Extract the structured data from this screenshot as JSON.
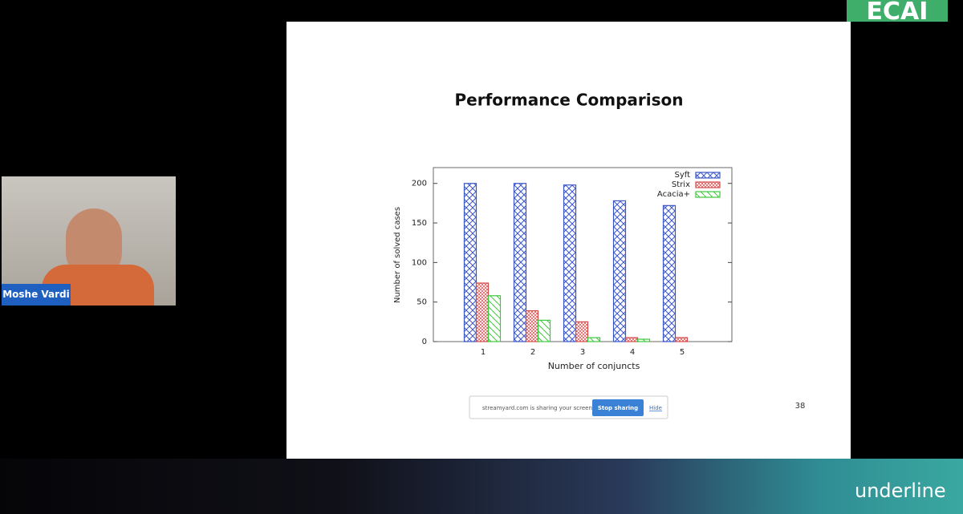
{
  "chart_data": {
    "type": "bar",
    "title": "Performance Comparison",
    "x_label": "Number of conjuncts",
    "y_label": "Number of solved cases",
    "categories": [
      "1",
      "2",
      "3",
      "4",
      "5"
    ],
    "series": [
      {
        "name": "Syft",
        "color": "#3a55c8",
        "values": [
          200,
          200,
          198,
          178,
          172
        ]
      },
      {
        "name": "Strix",
        "color": "#d44a4a",
        "values": [
          74,
          39,
          25,
          5,
          5
        ]
      },
      {
        "name": "Acacia+",
        "color": "#3cc83c",
        "values": [
          58,
          27,
          5,
          3,
          0
        ]
      }
    ],
    "ylim": [
      0,
      220
    ],
    "yticks": [
      0,
      50,
      100,
      150,
      200
    ],
    "grid": false,
    "legend": "top-right"
  },
  "slide": {
    "page_number": "38"
  },
  "share_bar": {
    "message": "streamyard.com is sharing your screen.",
    "stop_button": "Stop sharing",
    "hide_link": "Hide"
  },
  "speaker": {
    "name": "Moshe Vardi"
  },
  "branding": {
    "conference_logo": "ECAI",
    "platform": "underline"
  }
}
